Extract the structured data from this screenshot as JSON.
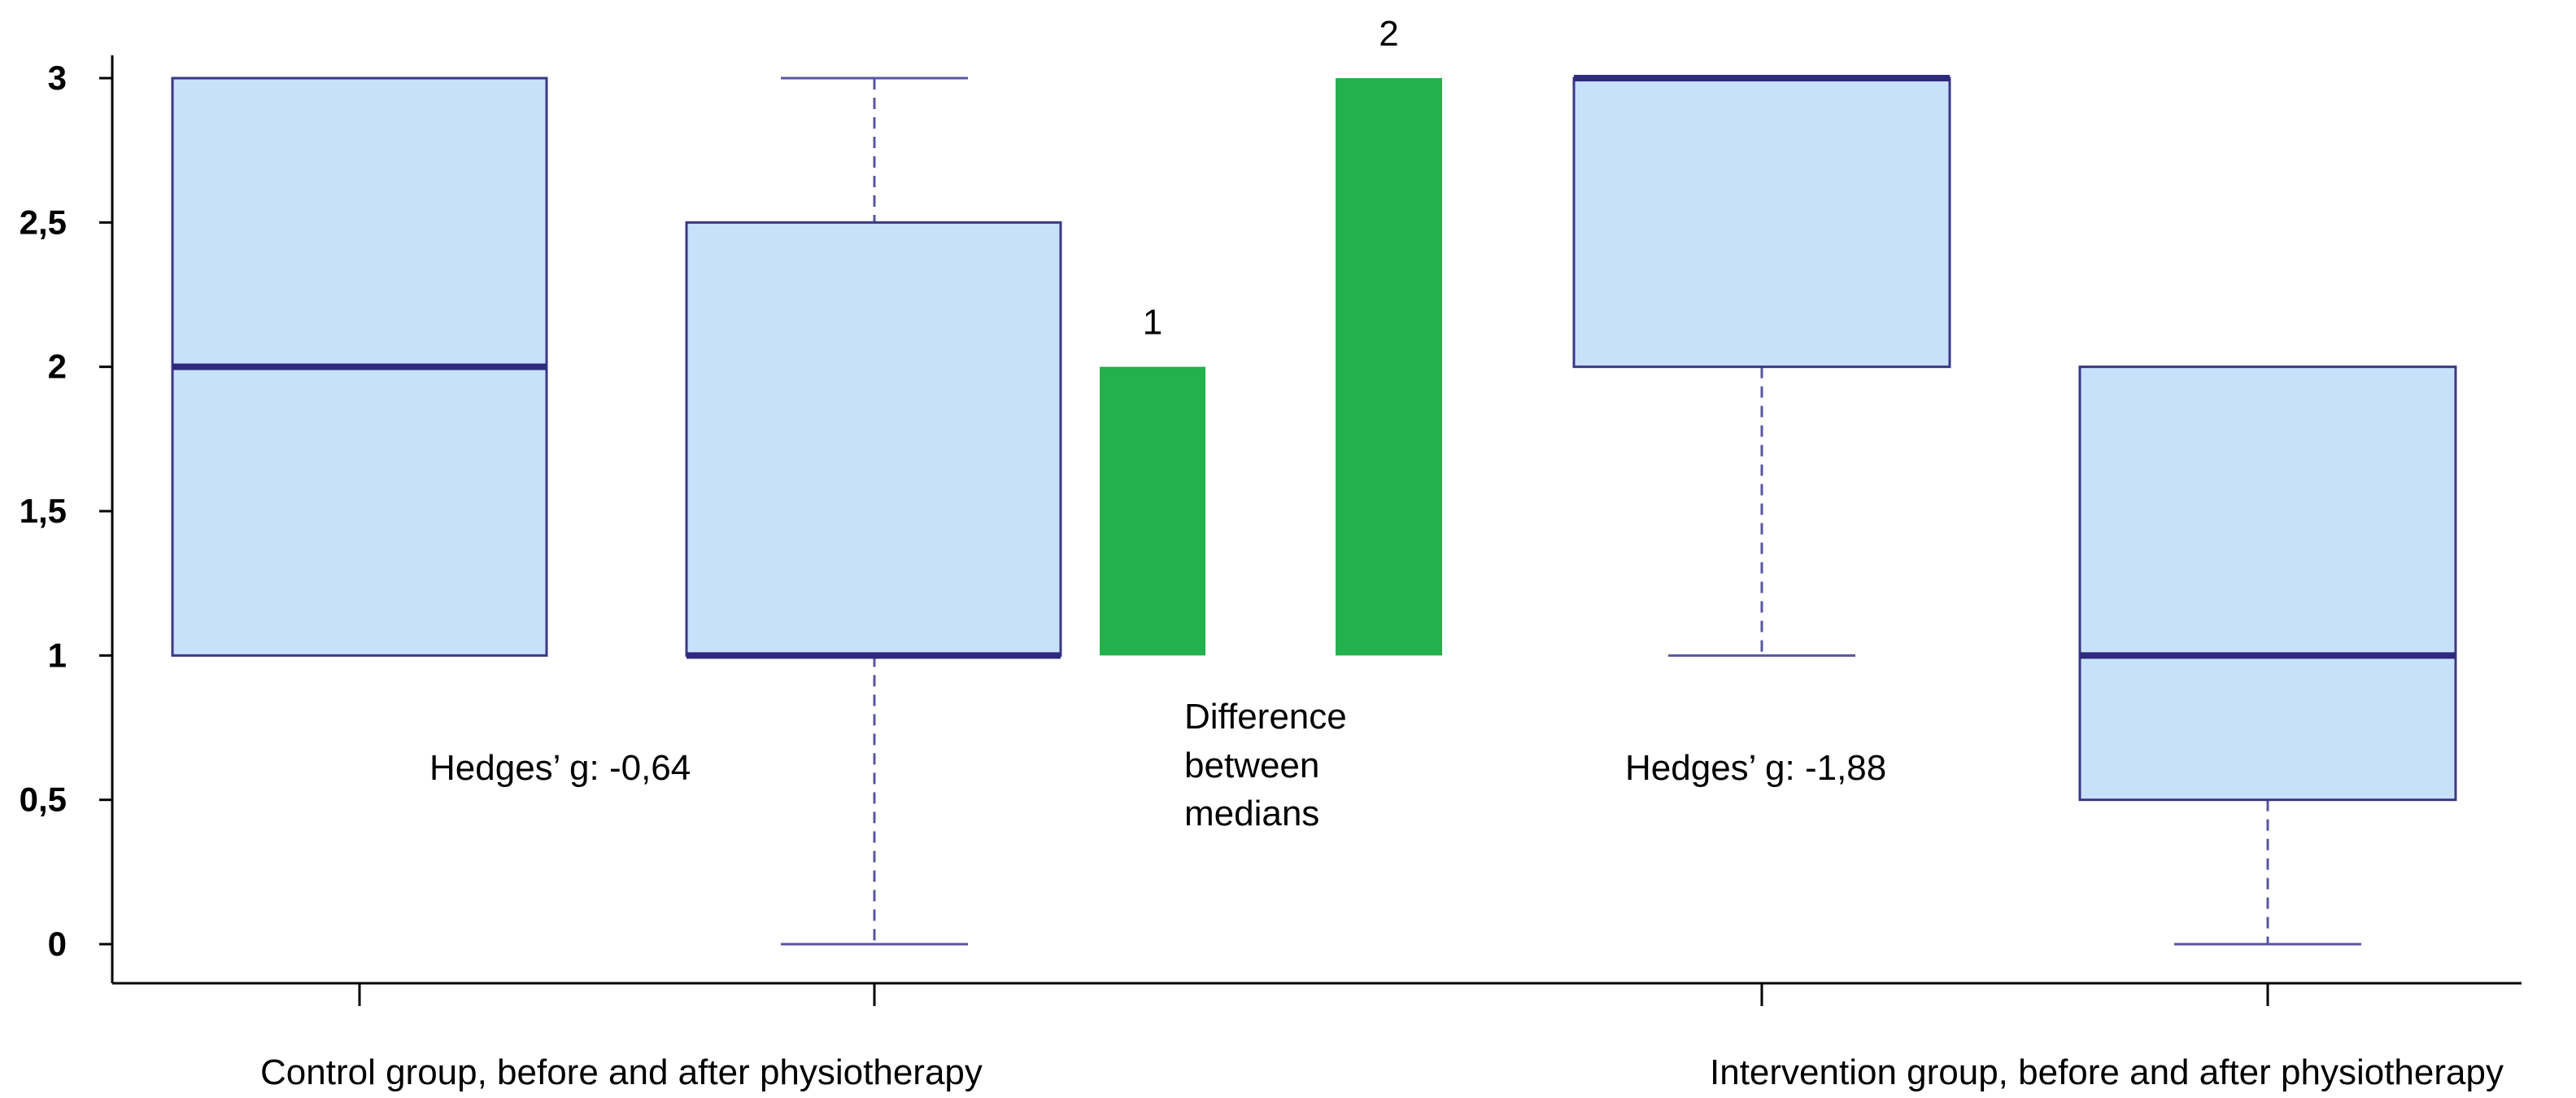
{
  "chart_data": {
    "type": "box",
    "ylim": [
      0,
      3
    ],
    "yticks": [
      {
        "value": 0,
        "label": "0"
      },
      {
        "value": 0.5,
        "label": "0,5"
      },
      {
        "value": 1,
        "label": "1"
      },
      {
        "value": 1.5,
        "label": "1,5"
      },
      {
        "value": 2,
        "label": "2"
      },
      {
        "value": 2.5,
        "label": "2,5"
      },
      {
        "value": 3,
        "label": "3"
      }
    ],
    "boxes": [
      {
        "group": "control",
        "phase": "before",
        "min": 1,
        "q1": 1,
        "median": 2,
        "q3": 3,
        "max": 3
      },
      {
        "group": "control",
        "phase": "after",
        "min": 0,
        "q1": 1,
        "median": 1,
        "q3": 2.5,
        "max": 3
      },
      {
        "group": "intervention",
        "phase": "before",
        "min": 1,
        "q1": 2,
        "median": 3,
        "q3": 3,
        "max": 3
      },
      {
        "group": "intervention",
        "phase": "after",
        "min": 0,
        "q1": 0.5,
        "median": 1,
        "q3": 2,
        "max": 2
      }
    ],
    "median_differences": [
      {
        "label": "1",
        "value": 1,
        "from": 1,
        "to": 2
      },
      {
        "label": "2",
        "value": 2,
        "from": 1,
        "to": 3
      }
    ],
    "annotations": {
      "control_hedges": "Hedges’ g: -0,64",
      "intervention_hedges": "Hedges’ g: -1,88",
      "difference_line1": "Difference",
      "difference_line2": "between",
      "difference_line3": "medians"
    },
    "group_labels": {
      "control": "Control group, before and after physiotherapy",
      "intervention": "Intervention group, before and after physiotherapy"
    },
    "colors": {
      "box_fill": "#c7e1fb",
      "box_stroke": "#3b3787",
      "median": "#2e2a7e",
      "difference_bar": "#22b14c"
    }
  }
}
